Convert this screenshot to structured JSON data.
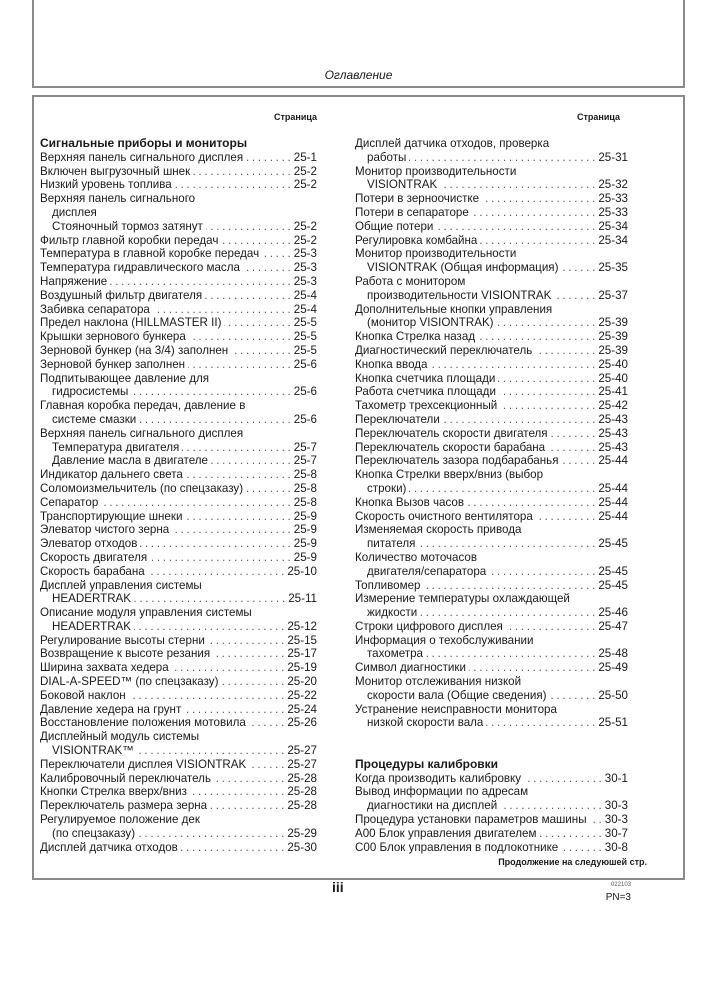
{
  "header": {
    "title": "Оглавление"
  },
  "column_header": "Страница",
  "left": {
    "heading": "Сигнальные приборы и мониторы",
    "items": [
      {
        "lines": [
          "Верхняя панель сигнального дисплея"
        ],
        "page": "25-1"
      },
      {
        "lines": [
          "Включен выгрузочный шнек"
        ],
        "page": "25-2"
      },
      {
        "lines": [
          "Низкий уровень топлива"
        ],
        "page": "25-2"
      },
      {
        "lines": [
          "Верхняя панель сигнального",
          "дисплея",
          "Стояночный тормоз затянут"
        ],
        "page": "25-2"
      },
      {
        "lines": [
          "Фильтр главной коробки передач"
        ],
        "page": "25-2"
      },
      {
        "lines": [
          "Температура в главной коробке передач"
        ],
        "page": "25-3"
      },
      {
        "lines": [
          "Температура гидравлического масла"
        ],
        "page": "25-3"
      },
      {
        "lines": [
          "Напряжение"
        ],
        "page": "25-3"
      },
      {
        "lines": [
          "Воздушный фильтр двигателя"
        ],
        "page": "25-4"
      },
      {
        "lines": [
          "Забивка сепаратора"
        ],
        "page": "25-4"
      },
      {
        "lines": [
          "Предел наклона (HILLMASTER II)"
        ],
        "page": "25-5"
      },
      {
        "lines": [
          "Крышки зернового бункера"
        ],
        "page": "25-5"
      },
      {
        "lines": [
          "Зерновой бункер (на 3/4) заполнен"
        ],
        "page": "25-5"
      },
      {
        "lines": [
          "Зерновой бункер заполнен"
        ],
        "page": "25-6"
      },
      {
        "lines": [
          "Подпитывающее давление для",
          "гидросистемы"
        ],
        "page": "25-6"
      },
      {
        "lines": [
          "Главная коробка передач, давление в",
          "системе смазки"
        ],
        "page": "25-6"
      },
      {
        "lines": [
          "Верхняя панель сигнального дисплея"
        ],
        "page": ""
      },
      {
        "lines": [
          "Температура двигателя"
        ],
        "page": "25-7",
        "sub": true
      },
      {
        "lines": [
          "Давление масла в двигателе"
        ],
        "page": "25-7",
        "sub": true
      },
      {
        "lines": [
          "Индикатор дальнего света"
        ],
        "page": "25-8"
      },
      {
        "lines": [
          "Соломоизмельчитель (по спецзаказу)"
        ],
        "page": "25-8"
      },
      {
        "lines": [
          "Сепаратор"
        ],
        "page": "25-8"
      },
      {
        "lines": [
          "Транспортирующие шнеки"
        ],
        "page": "25-9"
      },
      {
        "lines": [
          "Элеватор чистого зерна"
        ],
        "page": "25-9"
      },
      {
        "lines": [
          "Элеватор отходов"
        ],
        "page": "25-9"
      },
      {
        "lines": [
          "Скорость двигателя"
        ],
        "page": "25-9"
      },
      {
        "lines": [
          "Скорость барабана"
        ],
        "page": "25-10"
      },
      {
        "lines": [
          "Дисплей управления системы",
          "HEADERTRAK"
        ],
        "page": "25-11"
      },
      {
        "lines": [
          "Описание модуля управления системы",
          "HEADERTRAK"
        ],
        "page": "25-12"
      },
      {
        "lines": [
          "Регулирование высоты стерни"
        ],
        "page": "25-15"
      },
      {
        "lines": [
          "Возвращение к высоте резания"
        ],
        "page": "25-17"
      },
      {
        "lines": [
          "Ширина захвата хедера"
        ],
        "page": "25-19"
      },
      {
        "lines": [
          "DIAL-A-SPEED™ (по спецзаказу)"
        ],
        "page": "25-20"
      },
      {
        "lines": [
          "Боковой наклон"
        ],
        "page": "25-22"
      },
      {
        "lines": [
          "Давление хедера на грунт"
        ],
        "page": "25-24"
      },
      {
        "lines": [
          "Восстановление положения мотовила"
        ],
        "page": "25-26"
      },
      {
        "lines": [
          "Дисплейный модуль системы",
          "VISIONTRAK™"
        ],
        "page": "25-27"
      },
      {
        "lines": [
          "Переключатели дисплея VISIONTRAK"
        ],
        "page": "25-27"
      },
      {
        "lines": [
          "Калибровочный переключатель"
        ],
        "page": "25-28"
      },
      {
        "lines": [
          "Кнопки Стрелка вверх/вниз"
        ],
        "page": "25-28"
      },
      {
        "lines": [
          "Переключатель размера зерна"
        ],
        "page": "25-28"
      },
      {
        "lines": [
          "Регулируемое положение дек",
          "(по спецзаказу)"
        ],
        "page": "25-29"
      },
      {
        "lines": [
          "Дисплей датчика отходов"
        ],
        "page": "25-30"
      }
    ]
  },
  "right": {
    "items": [
      {
        "lines": [
          "Дисплей датчика отходов, проверка",
          "работы"
        ],
        "page": "25-31"
      },
      {
        "lines": [
          "Монитор производительности",
          "VISIONTRAK"
        ],
        "page": "25-32"
      },
      {
        "lines": [
          "Потери в зерноочистке"
        ],
        "page": "25-33"
      },
      {
        "lines": [
          "Потери в сепараторе"
        ],
        "page": "25-33"
      },
      {
        "lines": [
          "Общие потери"
        ],
        "page": "25-34"
      },
      {
        "lines": [
          "Регулировка комбайна"
        ],
        "page": "25-34"
      },
      {
        "lines": [
          "Монитор производительности",
          "VISIONTRAK (Общая информация)"
        ],
        "page": "25-35"
      },
      {
        "lines": [
          "Работа с монитором",
          "производительности VISIONTRAK"
        ],
        "page": "25-37"
      },
      {
        "lines": [
          "Дополнительные кнопки управления",
          "(монитор VISIONTRAK)"
        ],
        "page": "25-39"
      },
      {
        "lines": [
          "Кнопка Стрелка назад"
        ],
        "page": "25-39"
      },
      {
        "lines": [
          "Диагностический переключатель"
        ],
        "page": "25-39"
      },
      {
        "lines": [
          "Кнопка ввода"
        ],
        "page": "25-40"
      },
      {
        "lines": [
          "Кнопка счетчика площади"
        ],
        "page": "25-40"
      },
      {
        "lines": [
          "Работа счетчика площади"
        ],
        "page": "25-41"
      },
      {
        "lines": [
          "Тахометр трехсекционный"
        ],
        "page": "25-42"
      },
      {
        "lines": [
          "Переключатели"
        ],
        "page": "25-43"
      },
      {
        "lines": [
          "Переключатель скорости двигателя"
        ],
        "page": "25-43"
      },
      {
        "lines": [
          "Переключатель скорости барабана"
        ],
        "page": "25-43"
      },
      {
        "lines": [
          "Переключатель зазора подбарабанья"
        ],
        "page": "25-44"
      },
      {
        "lines": [
          "Кнопка Стрелки вверх/вниз (выбор",
          "строки)"
        ],
        "page": "25-44"
      },
      {
        "lines": [
          "Кнопка Вызов часов"
        ],
        "page": "25-44"
      },
      {
        "lines": [
          "Скорость очистного вентилятора"
        ],
        "page": "25-44"
      },
      {
        "lines": [
          "Изменяемая скорость привода",
          "питателя"
        ],
        "page": "25-45"
      },
      {
        "lines": [
          "Количество моточасов",
          "двигателя/сепаратора"
        ],
        "page": "25-45"
      },
      {
        "lines": [
          "Топливомер"
        ],
        "page": "25-45"
      },
      {
        "lines": [
          "Измерение температуры охлаждающей",
          "жидкости"
        ],
        "page": "25-46"
      },
      {
        "lines": [
          "Строки цифрового дисплея"
        ],
        "page": "25-47"
      },
      {
        "lines": [
          "Информация о техобслуживании",
          "тахометра"
        ],
        "page": "25-48"
      },
      {
        "lines": [
          "Символ диагностики"
        ],
        "page": "25-49"
      },
      {
        "lines": [
          "Монитор отслеживания низкой",
          "скорости вала (Общие сведения)"
        ],
        "page": "25-50"
      },
      {
        "lines": [
          "Устранение неисправности монитора",
          "низкой скорости вала"
        ],
        "page": "25-51"
      }
    ],
    "heading2": "Процедуры калибровки",
    "items2": [
      {
        "lines": [
          "Когда производить калибровку"
        ],
        "page": "30-1"
      },
      {
        "lines": [
          "Вывод информации по адресам",
          "диагностики на дисплей"
        ],
        "page": "30-3"
      },
      {
        "lines": [
          "Процедура установки параметров машины"
        ],
        "page": "30-3"
      },
      {
        "lines": [
          "A00 Блок управления двигателем"
        ],
        "page": "30-7"
      },
      {
        "lines": [
          "C00 Блок управления в подлокотнике"
        ],
        "page": "30-8"
      }
    ]
  },
  "footer": {
    "continued": "Продолжение на следуюшей стр.",
    "page_number": "iii",
    "code": "022103",
    "pn": "PN=3"
  }
}
